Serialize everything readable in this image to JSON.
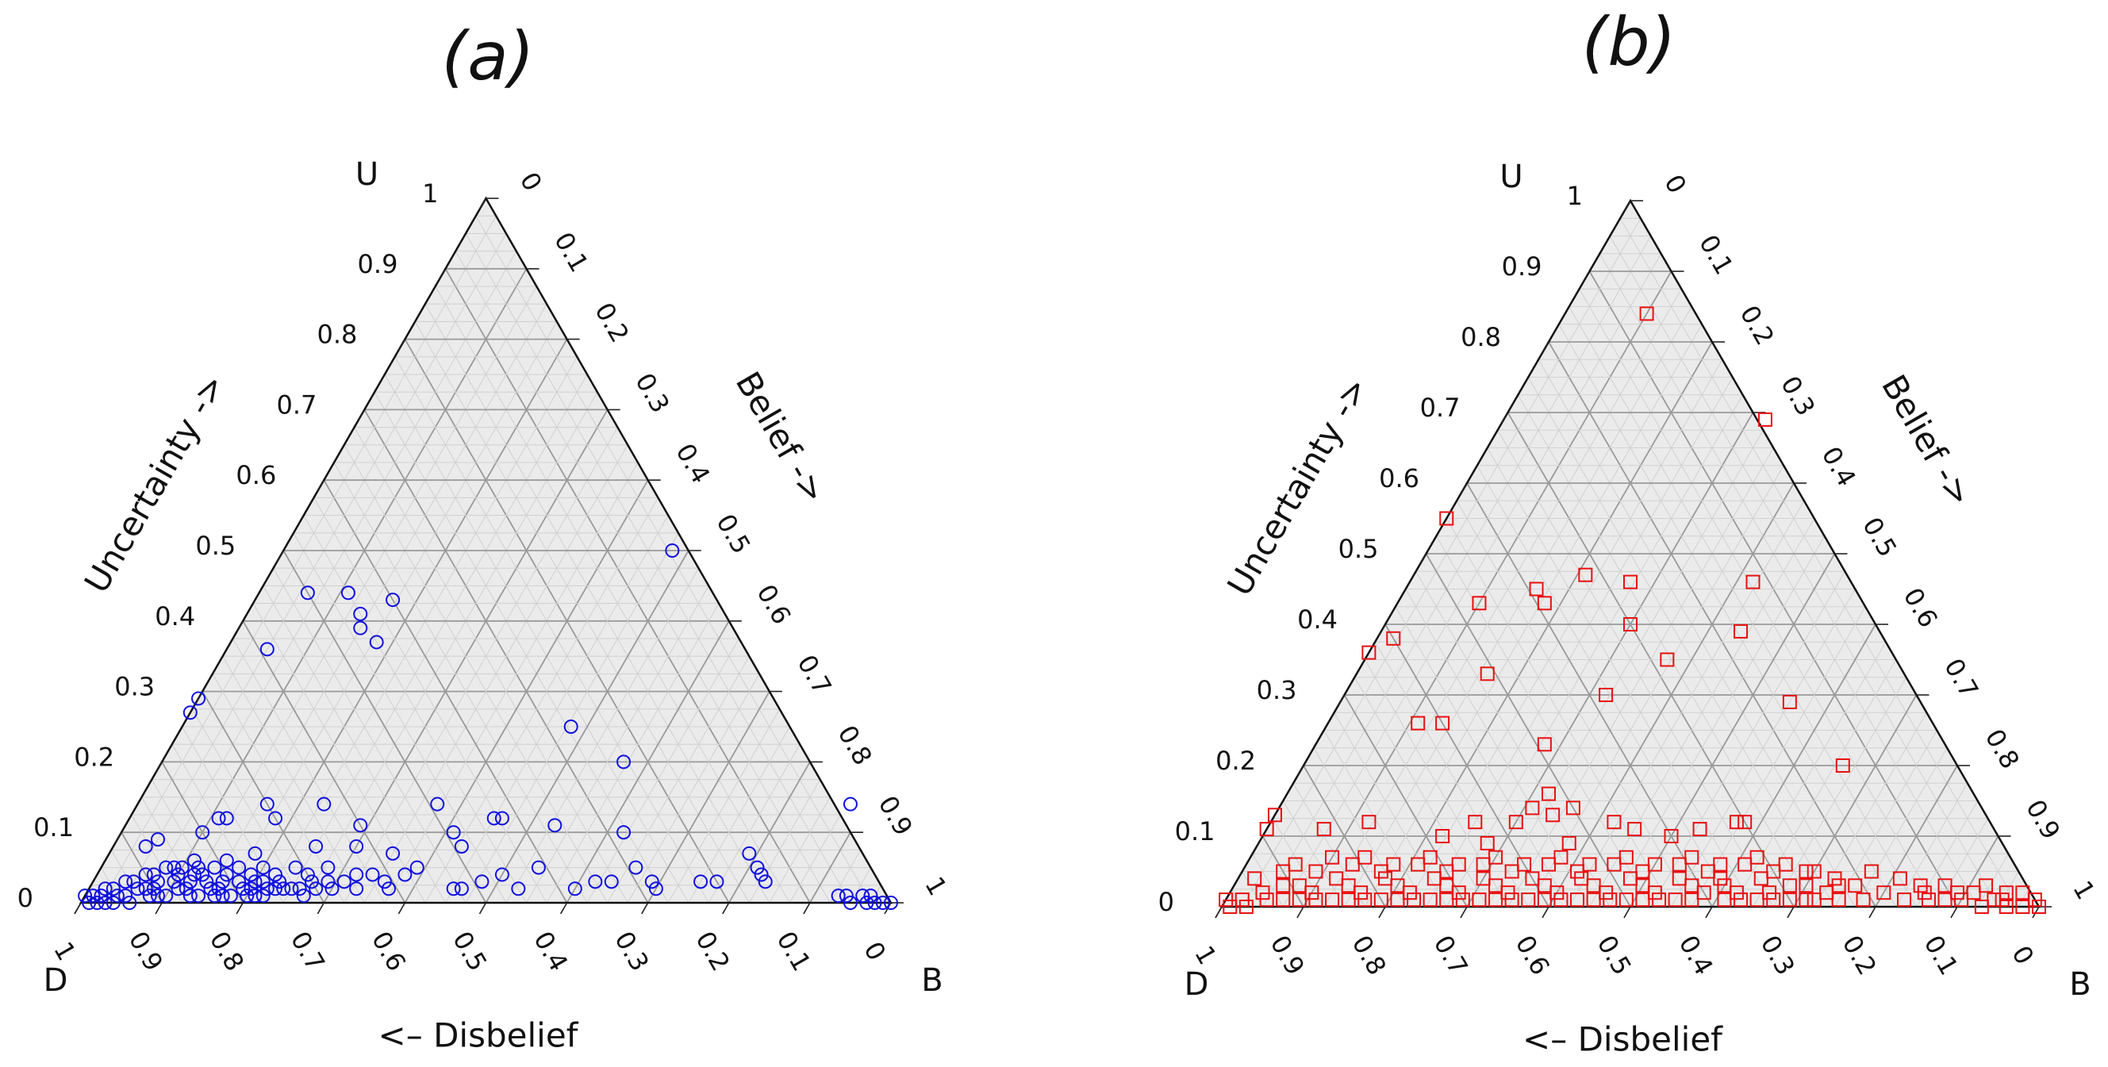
{
  "chart_data": [
    {
      "type": "scatter",
      "subtype": "ternary",
      "title": "(a)",
      "vertex_labels": {
        "top": "U",
        "left": "D",
        "right": "B"
      },
      "axis_labels": {
        "uncertainty": "Uncertainty ->",
        "belief": "Belief ->",
        "disbelief": "<– Disbelief"
      },
      "ticks": [
        "0",
        "0.1",
        "0.2",
        "0.3",
        "0.4",
        "0.5",
        "0.6",
        "0.7",
        "0.8",
        "0.9",
        "1"
      ],
      "grid": true,
      "marker": "circle",
      "color": "#1010e0",
      "points_b_u": [
        [
          0.48,
          0.5
        ],
        [
          0.06,
          0.44
        ],
        [
          0.11,
          0.44
        ],
        [
          0.14,
          0.41
        ],
        [
          0.17,
          0.43
        ],
        [
          0.15,
          0.39
        ],
        [
          0.18,
          0.37
        ],
        [
          0.05,
          0.36
        ],
        [
          0.0,
          0.29
        ],
        [
          0.0,
          0.27
        ],
        [
          0.48,
          0.25
        ],
        [
          0.57,
          0.2
        ],
        [
          0.16,
          0.14
        ],
        [
          0.23,
          0.14
        ],
        [
          0.37,
          0.14
        ],
        [
          0.88,
          0.14
        ],
        [
          0.11,
          0.12
        ],
        [
          0.12,
          0.12
        ],
        [
          0.18,
          0.12
        ],
        [
          0.45,
          0.12
        ],
        [
          0.46,
          0.12
        ],
        [
          0.53,
          0.11
        ],
        [
          0.29,
          0.11
        ],
        [
          0.41,
          0.1
        ],
        [
          0.62,
          0.1
        ],
        [
          0.1,
          0.1
        ],
        [
          0.25,
          0.08
        ],
        [
          0.3,
          0.08
        ],
        [
          0.43,
          0.08
        ],
        [
          0.04,
          0.08
        ],
        [
          0.05,
          0.09
        ],
        [
          0.18,
          0.07
        ],
        [
          0.35,
          0.07
        ],
        [
          0.79,
          0.07
        ],
        [
          0.66,
          0.05
        ],
        [
          0.54,
          0.05
        ],
        [
          0.39,
          0.05
        ],
        [
          0.81,
          0.05
        ],
        [
          0.82,
          0.04
        ],
        [
          0.5,
          0.04
        ],
        [
          0.69,
          0.03
        ],
        [
          0.62,
          0.03
        ],
        [
          0.64,
          0.03
        ],
        [
          0.75,
          0.03
        ],
        [
          0.45,
          0.02
        ],
        [
          0.46,
          0.02
        ],
        [
          0.48,
          0.03
        ],
        [
          0.53,
          0.02
        ],
        [
          0.6,
          0.02
        ],
        [
          0.7,
          0.02
        ],
        [
          0.77,
          0.03
        ],
        [
          0.83,
          0.03
        ],
        [
          0.93,
          0.01
        ],
        [
          0.94,
          0.01
        ],
        [
          0.96,
          0.01
        ],
        [
          0.97,
          0.01
        ],
        [
          0.98,
          0.0
        ],
        [
          0.99,
          0.0
        ],
        [
          1.0,
          0.0
        ],
        [
          0.97,
          0.0
        ],
        [
          0.95,
          0.0
        ],
        [
          0.0,
          0.01
        ],
        [
          0.01,
          0.01
        ],
        [
          0.02,
          0.02
        ],
        [
          0.03,
          0.02
        ],
        [
          0.04,
          0.03
        ],
        [
          0.05,
          0.03
        ],
        [
          0.06,
          0.04
        ],
        [
          0.07,
          0.04
        ],
        [
          0.08,
          0.05
        ],
        [
          0.09,
          0.05
        ],
        [
          0.1,
          0.05
        ],
        [
          0.11,
          0.06
        ],
        [
          0.12,
          0.05
        ],
        [
          0.13,
          0.04
        ],
        [
          0.14,
          0.05
        ],
        [
          0.15,
          0.06
        ],
        [
          0.16,
          0.04
        ],
        [
          0.17,
          0.05
        ],
        [
          0.19,
          0.04
        ],
        [
          0.2,
          0.05
        ],
        [
          0.21,
          0.03
        ],
        [
          0.22,
          0.04
        ],
        [
          0.23,
          0.03
        ],
        [
          0.24,
          0.05
        ],
        [
          0.26,
          0.04
        ],
        [
          0.27,
          0.03
        ],
        [
          0.28,
          0.05
        ],
        [
          0.29,
          0.03
        ],
        [
          0.31,
          0.03
        ],
        [
          0.32,
          0.04
        ],
        [
          0.33,
          0.02
        ],
        [
          0.34,
          0.04
        ],
        [
          0.36,
          0.03
        ],
        [
          0.37,
          0.02
        ],
        [
          0.38,
          0.04
        ],
        [
          0.03,
          0.0
        ],
        [
          0.05,
          0.01
        ],
        [
          0.07,
          0.02
        ],
        [
          0.09,
          0.01
        ],
        [
          0.11,
          0.02
        ],
        [
          0.13,
          0.01
        ],
        [
          0.15,
          0.02
        ],
        [
          0.17,
          0.01
        ],
        [
          0.19,
          0.02
        ],
        [
          0.21,
          0.01
        ],
        [
          0.23,
          0.02
        ],
        [
          0.25,
          0.02
        ],
        [
          0.27,
          0.01
        ],
        [
          0.3,
          0.02
        ],
        [
          0.02,
          0.01
        ],
        [
          0.04,
          0.01
        ],
        [
          0.06,
          0.02
        ],
        [
          0.08,
          0.02
        ],
        [
          0.1,
          0.03
        ],
        [
          0.12,
          0.03
        ],
        [
          0.14,
          0.03
        ],
        [
          0.16,
          0.02
        ],
        [
          0.18,
          0.03
        ],
        [
          0.2,
          0.02
        ],
        [
          0.22,
          0.02
        ],
        [
          0.24,
          0.02
        ],
        [
          0.26,
          0.02
        ],
        [
          0.28,
          0.02
        ],
        [
          0.01,
          0.0
        ],
        [
          0.06,
          0.0
        ],
        [
          0.1,
          0.01
        ],
        [
          0.14,
          0.01
        ],
        [
          0.18,
          0.01
        ],
        [
          0.22,
          0.01
        ],
        [
          0.08,
          0.03
        ],
        [
          0.12,
          0.04
        ],
        [
          0.16,
          0.03
        ],
        [
          0.2,
          0.03
        ],
        [
          0.1,
          0.04
        ],
        [
          0.02,
          0.0
        ],
        [
          0.04,
          0.0
        ],
        [
          0.08,
          0.01
        ],
        [
          0.12,
          0.02
        ],
        [
          0.16,
          0.01
        ],
        [
          0.2,
          0.01
        ]
      ]
    },
    {
      "type": "scatter",
      "subtype": "ternary",
      "title": "(b)",
      "vertex_labels": {
        "top": "U",
        "left": "D",
        "right": "B"
      },
      "axis_labels": {
        "uncertainty": "Uncertainty ->",
        "belief": "Belief ->",
        "disbelief": "<– Disbelief"
      },
      "ticks": [
        "0",
        "0.1",
        "0.2",
        "0.3",
        "0.4",
        "0.5",
        "0.6",
        "0.7",
        "0.8",
        "0.9",
        "1"
      ],
      "grid": true,
      "marker": "square",
      "color": "#e81010",
      "points_b_u": [
        [
          0.1,
          0.84
        ],
        [
          0.32,
          0.69
        ],
        [
          0.0,
          0.55
        ],
        [
          0.21,
          0.47
        ],
        [
          0.42,
          0.46
        ],
        [
          0.27,
          0.46
        ],
        [
          0.16,
          0.45
        ],
        [
          0.1,
          0.43
        ],
        [
          0.18,
          0.43
        ],
        [
          0.3,
          0.4
        ],
        [
          0.44,
          0.39
        ],
        [
          0.02,
          0.38
        ],
        [
          0.0,
          0.36
        ],
        [
          0.37,
          0.35
        ],
        [
          0.16,
          0.33
        ],
        [
          0.32,
          0.3
        ],
        [
          0.55,
          0.29
        ],
        [
          0.11,
          0.26
        ],
        [
          0.14,
          0.26
        ],
        [
          0.28,
          0.23
        ],
        [
          0.66,
          0.2
        ],
        [
          0.32,
          0.16
        ],
        [
          0.31,
          0.14
        ],
        [
          0.34,
          0.13
        ],
        [
          0.36,
          0.14
        ],
        [
          0.3,
          0.12
        ],
        [
          0.57,
          0.12
        ],
        [
          0.58,
          0.12
        ],
        [
          0.0,
          0.13
        ],
        [
          0.0,
          0.11
        ],
        [
          0.42,
          0.12
        ],
        [
          0.45,
          0.11
        ],
        [
          0.25,
          0.12
        ],
        [
          0.12,
          0.12
        ],
        [
          0.07,
          0.11
        ],
        [
          0.53,
          0.11
        ],
        [
          0.22,
          0.1
        ],
        [
          0.5,
          0.1
        ],
        [
          0.38,
          0.09
        ],
        [
          0.28,
          0.09
        ],
        [
          0.59,
          0.04
        ],
        [
          0.64,
          0.04
        ],
        [
          0.7,
          0.03
        ],
        [
          0.76,
          0.03
        ],
        [
          0.8,
          0.02
        ],
        [
          0.85,
          0.02
        ],
        [
          0.9,
          0.01
        ],
        [
          0.95,
          0.01
        ],
        [
          0.98,
          0.0
        ],
        [
          1.0,
          0.0
        ],
        [
          0.99,
          0.01
        ],
        [
          0.93,
          0.0
        ],
        [
          0.88,
          0.01
        ],
        [
          0.83,
          0.01
        ],
        [
          0.78,
          0.01
        ],
        [
          0.73,
          0.02
        ],
        [
          0.0,
          0.01
        ],
        [
          0.02,
          0.01
        ],
        [
          0.04,
          0.02
        ],
        [
          0.06,
          0.03
        ],
        [
          0.08,
          0.03
        ],
        [
          0.1,
          0.02
        ],
        [
          0.12,
          0.04
        ],
        [
          0.14,
          0.03
        ],
        [
          0.16,
          0.02
        ],
        [
          0.18,
          0.04
        ],
        [
          0.2,
          0.03
        ],
        [
          0.22,
          0.02
        ],
        [
          0.24,
          0.04
        ],
        [
          0.26,
          0.03
        ],
        [
          0.28,
          0.02
        ],
        [
          0.3,
          0.04
        ],
        [
          0.32,
          0.03
        ],
        [
          0.34,
          0.02
        ],
        [
          0.36,
          0.04
        ],
        [
          0.38,
          0.03
        ],
        [
          0.4,
          0.02
        ],
        [
          0.42,
          0.04
        ],
        [
          0.44,
          0.03
        ],
        [
          0.46,
          0.02
        ],
        [
          0.48,
          0.04
        ],
        [
          0.5,
          0.03
        ],
        [
          0.52,
          0.02
        ],
        [
          0.54,
          0.04
        ],
        [
          0.56,
          0.03
        ],
        [
          0.58,
          0.02
        ],
        [
          0.6,
          0.03
        ],
        [
          0.62,
          0.02
        ],
        [
          0.66,
          0.02
        ],
        [
          0.68,
          0.03
        ],
        [
          0.72,
          0.01
        ],
        [
          0.74,
          0.03
        ],
        [
          0.01,
          0.0
        ],
        [
          0.03,
          0.0
        ],
        [
          0.05,
          0.01
        ],
        [
          0.07,
          0.01
        ],
        [
          0.09,
          0.01
        ],
        [
          0.11,
          0.01
        ],
        [
          0.13,
          0.01
        ],
        [
          0.15,
          0.01
        ],
        [
          0.17,
          0.01
        ],
        [
          0.19,
          0.01
        ],
        [
          0.21,
          0.01
        ],
        [
          0.23,
          0.01
        ],
        [
          0.25,
          0.01
        ],
        [
          0.27,
          0.01
        ],
        [
          0.29,
          0.01
        ],
        [
          0.31,
          0.01
        ],
        [
          0.33,
          0.01
        ],
        [
          0.35,
          0.01
        ],
        [
          0.37,
          0.01
        ],
        [
          0.39,
          0.01
        ],
        [
          0.41,
          0.01
        ],
        [
          0.43,
          0.01
        ],
        [
          0.45,
          0.01
        ],
        [
          0.47,
          0.01
        ],
        [
          0.49,
          0.01
        ],
        [
          0.51,
          0.01
        ],
        [
          0.53,
          0.01
        ],
        [
          0.55,
          0.01
        ],
        [
          0.57,
          0.01
        ],
        [
          0.61,
          0.01
        ],
        [
          0.63,
          0.01
        ],
        [
          0.65,
          0.01
        ],
        [
          0.67,
          0.01
        ],
        [
          0.69,
          0.01
        ],
        [
          0.71,
          0.01
        ],
        [
          0.75,
          0.01
        ],
        [
          0.05,
          0.05
        ],
        [
          0.09,
          0.05
        ],
        [
          0.13,
          0.06
        ],
        [
          0.17,
          0.05
        ],
        [
          0.21,
          0.06
        ],
        [
          0.25,
          0.05
        ],
        [
          0.29,
          0.06
        ],
        [
          0.33,
          0.05
        ],
        [
          0.37,
          0.06
        ],
        [
          0.41,
          0.05
        ],
        [
          0.45,
          0.06
        ],
        [
          0.49,
          0.05
        ],
        [
          0.53,
          0.06
        ],
        [
          0.57,
          0.05
        ],
        [
          0.61,
          0.06
        ],
        [
          0.65,
          0.05
        ],
        [
          0.69,
          0.05
        ],
        [
          0.02,
          0.04
        ],
        [
          0.06,
          0.06
        ],
        [
          0.1,
          0.07
        ],
        [
          0.14,
          0.07
        ],
        [
          0.18,
          0.06
        ],
        [
          0.22,
          0.07
        ],
        [
          0.26,
          0.06
        ],
        [
          0.3,
          0.07
        ],
        [
          0.34,
          0.06
        ],
        [
          0.38,
          0.07
        ],
        [
          0.42,
          0.06
        ],
        [
          0.46,
          0.07
        ],
        [
          0.5,
          0.06
        ],
        [
          0.54,
          0.07
        ],
        [
          0.58,
          0.06
        ],
        [
          0.62,
          0.07
        ],
        [
          0.66,
          0.06
        ],
        [
          0.7,
          0.05
        ],
        [
          0.87,
          0.03
        ],
        [
          0.91,
          0.02
        ],
        [
          0.95,
          0.02
        ],
        [
          0.97,
          0.02
        ],
        [
          0.92,
          0.03
        ],
        [
          0.81,
          0.04
        ],
        [
          0.77,
          0.05
        ],
        [
          0.73,
          0.04
        ],
        [
          0.86,
          0.01
        ],
        [
          0.89,
          0.02
        ],
        [
          0.96,
          0.0
        ],
        [
          0.94,
          0.01
        ],
        [
          0.84,
          0.03
        ]
      ]
    }
  ]
}
